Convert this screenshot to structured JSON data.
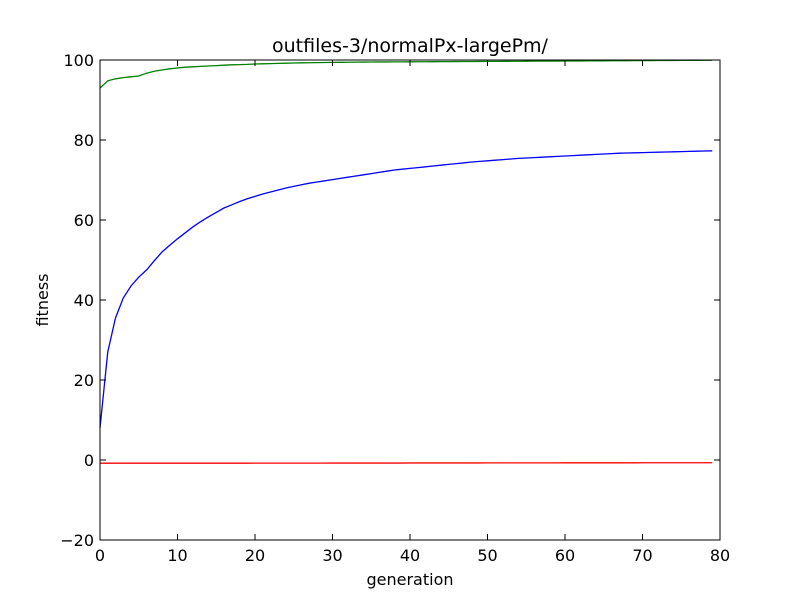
{
  "chart_data": {
    "type": "line",
    "title": "outfiles-3/normalPx-largePm/",
    "xlabel": "generation",
    "ylabel": "fitness",
    "xlim": [
      0,
      80
    ],
    "ylim": [
      -20,
      100
    ],
    "xticks": [
      "0",
      "10",
      "20",
      "30",
      "40",
      "50",
      "60",
      "70",
      "80"
    ],
    "yticks": [
      "−20",
      "0",
      "20",
      "40",
      "60",
      "80",
      "100"
    ],
    "grid": false,
    "legend": "none",
    "x": [
      0,
      1,
      2,
      3,
      4,
      5,
      6,
      7,
      8,
      9,
      10,
      11,
      12,
      13,
      14,
      15,
      16,
      17,
      18,
      19,
      20,
      21,
      22,
      23,
      24,
      25,
      26,
      27,
      28,
      29,
      30,
      31,
      32,
      33,
      34,
      35,
      36,
      37,
      38,
      39,
      40,
      41,
      42,
      43,
      44,
      45,
      46,
      47,
      48,
      49,
      50,
      51,
      52,
      53,
      54,
      55,
      56,
      57,
      58,
      59,
      60,
      61,
      62,
      63,
      64,
      65,
      66,
      67,
      68,
      69,
      70,
      71,
      72,
      73,
      74,
      75,
      76,
      77,
      78,
      79
    ],
    "series": [
      {
        "color": "#008000",
        "values": [
          93.0,
          94.8,
          95.3,
          95.6,
          95.8,
          96.0,
          96.7,
          97.2,
          97.5,
          97.8,
          98.0,
          98.2,
          98.3,
          98.4,
          98.5,
          98.6,
          98.7,
          98.8,
          98.85,
          98.9,
          99.0,
          99.05,
          99.1,
          99.15,
          99.2,
          99.25,
          99.3,
          99.32,
          99.35,
          99.38,
          99.4,
          99.42,
          99.44,
          99.46,
          99.48,
          99.5,
          99.51,
          99.52,
          99.53,
          99.54,
          99.55,
          99.56,
          99.57,
          99.58,
          99.59,
          99.6,
          99.61,
          99.62,
          99.63,
          99.64,
          99.65,
          99.66,
          99.67,
          99.68,
          99.69,
          99.7,
          99.71,
          99.72,
          99.73,
          99.74,
          99.75,
          99.76,
          99.77,
          99.78,
          99.79,
          99.8,
          99.81,
          99.82,
          99.83,
          99.84,
          99.85,
          99.86,
          99.87,
          99.88,
          99.89,
          99.9,
          99.91,
          99.92,
          99.93,
          99.94
        ]
      },
      {
        "color": "#0000ff",
        "values": [
          8.0,
          27.0,
          35.5,
          40.5,
          43.5,
          45.7,
          47.5,
          49.8,
          52.0,
          53.7,
          55.3,
          56.8,
          58.3,
          59.6,
          60.8,
          61.9,
          63.0,
          63.8,
          64.6,
          65.3,
          65.9,
          66.5,
          67.0,
          67.5,
          68.0,
          68.4,
          68.8,
          69.2,
          69.5,
          69.8,
          70.1,
          70.4,
          70.7,
          71.0,
          71.3,
          71.6,
          71.9,
          72.2,
          72.5,
          72.7,
          72.9,
          73.1,
          73.3,
          73.5,
          73.7,
          73.9,
          74.1,
          74.3,
          74.5,
          74.65,
          74.8,
          74.95,
          75.1,
          75.25,
          75.4,
          75.5,
          75.6,
          75.7,
          75.8,
          75.9,
          76.0,
          76.1,
          76.2,
          76.3,
          76.4,
          76.5,
          76.6,
          76.7,
          76.75,
          76.8,
          76.85,
          76.9,
          76.95,
          77.0,
          77.05,
          77.1,
          77.15,
          77.2,
          77.25,
          77.3
        ]
      },
      {
        "color": "#ff0000",
        "values": [
          -0.8,
          -0.8,
          -0.8,
          -0.8,
          -0.8,
          -0.8,
          -0.8,
          -0.8,
          -0.8,
          -0.8,
          -0.8,
          -0.8,
          -0.8,
          -0.8,
          -0.8,
          -0.8,
          -0.8,
          -0.8,
          -0.8,
          -0.8,
          -0.78,
          -0.78,
          -0.78,
          -0.78,
          -0.78,
          -0.78,
          -0.78,
          -0.78,
          -0.78,
          -0.78,
          -0.76,
          -0.76,
          -0.76,
          -0.76,
          -0.76,
          -0.76,
          -0.76,
          -0.76,
          -0.76,
          -0.76,
          -0.74,
          -0.74,
          -0.74,
          -0.74,
          -0.74,
          -0.74,
          -0.74,
          -0.74,
          -0.74,
          -0.74,
          -0.72,
          -0.72,
          -0.72,
          -0.72,
          -0.72,
          -0.72,
          -0.72,
          -0.72,
          -0.72,
          -0.72,
          -0.7,
          -0.7,
          -0.7,
          -0.7,
          -0.7,
          -0.7,
          -0.7,
          -0.7,
          -0.7,
          -0.7,
          -0.68,
          -0.68,
          -0.68,
          -0.68,
          -0.68,
          -0.68,
          -0.68,
          -0.68,
          -0.68,
          -0.68
        ]
      }
    ]
  }
}
